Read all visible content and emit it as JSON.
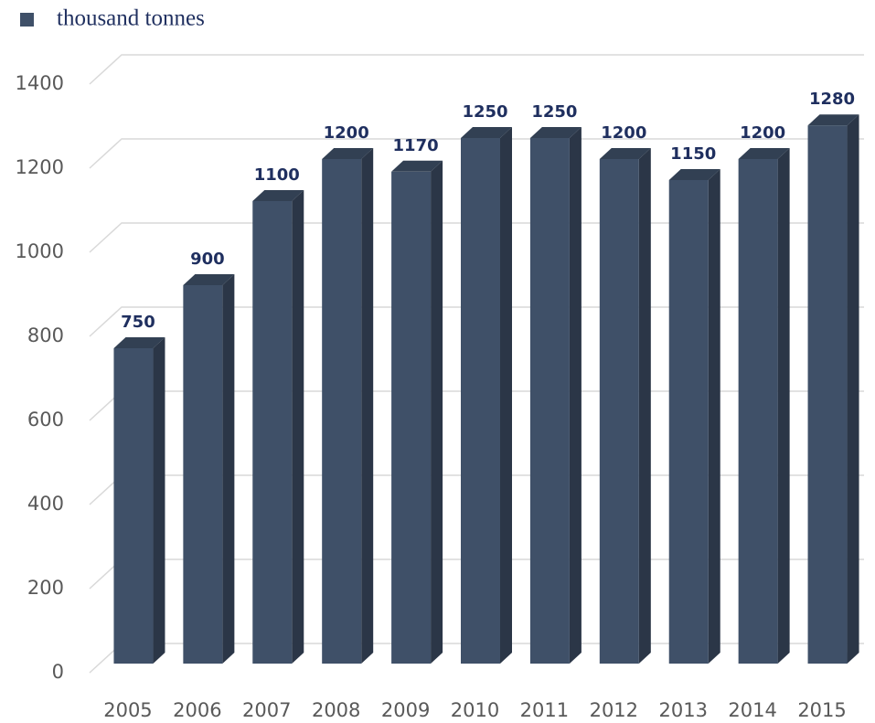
{
  "chart_data": {
    "type": "bar",
    "categories": [
      "2005",
      "2006",
      "2007",
      "2008",
      "2009",
      "2010",
      "2011",
      "2012",
      "2013",
      "2014",
      "2015"
    ],
    "series": [
      {
        "name": "thousand tonnes",
        "color": "#3f5068",
        "values": [
          750,
          900,
          1100,
          1200,
          1170,
          1250,
          1250,
          1200,
          1150,
          1200,
          1280
        ]
      }
    ],
    "ylim": [
      0,
      1400
    ],
    "yticks": [
      0,
      200,
      400,
      600,
      800,
      1000,
      1200,
      1400
    ],
    "grid": true,
    "legend": "top-left"
  }
}
